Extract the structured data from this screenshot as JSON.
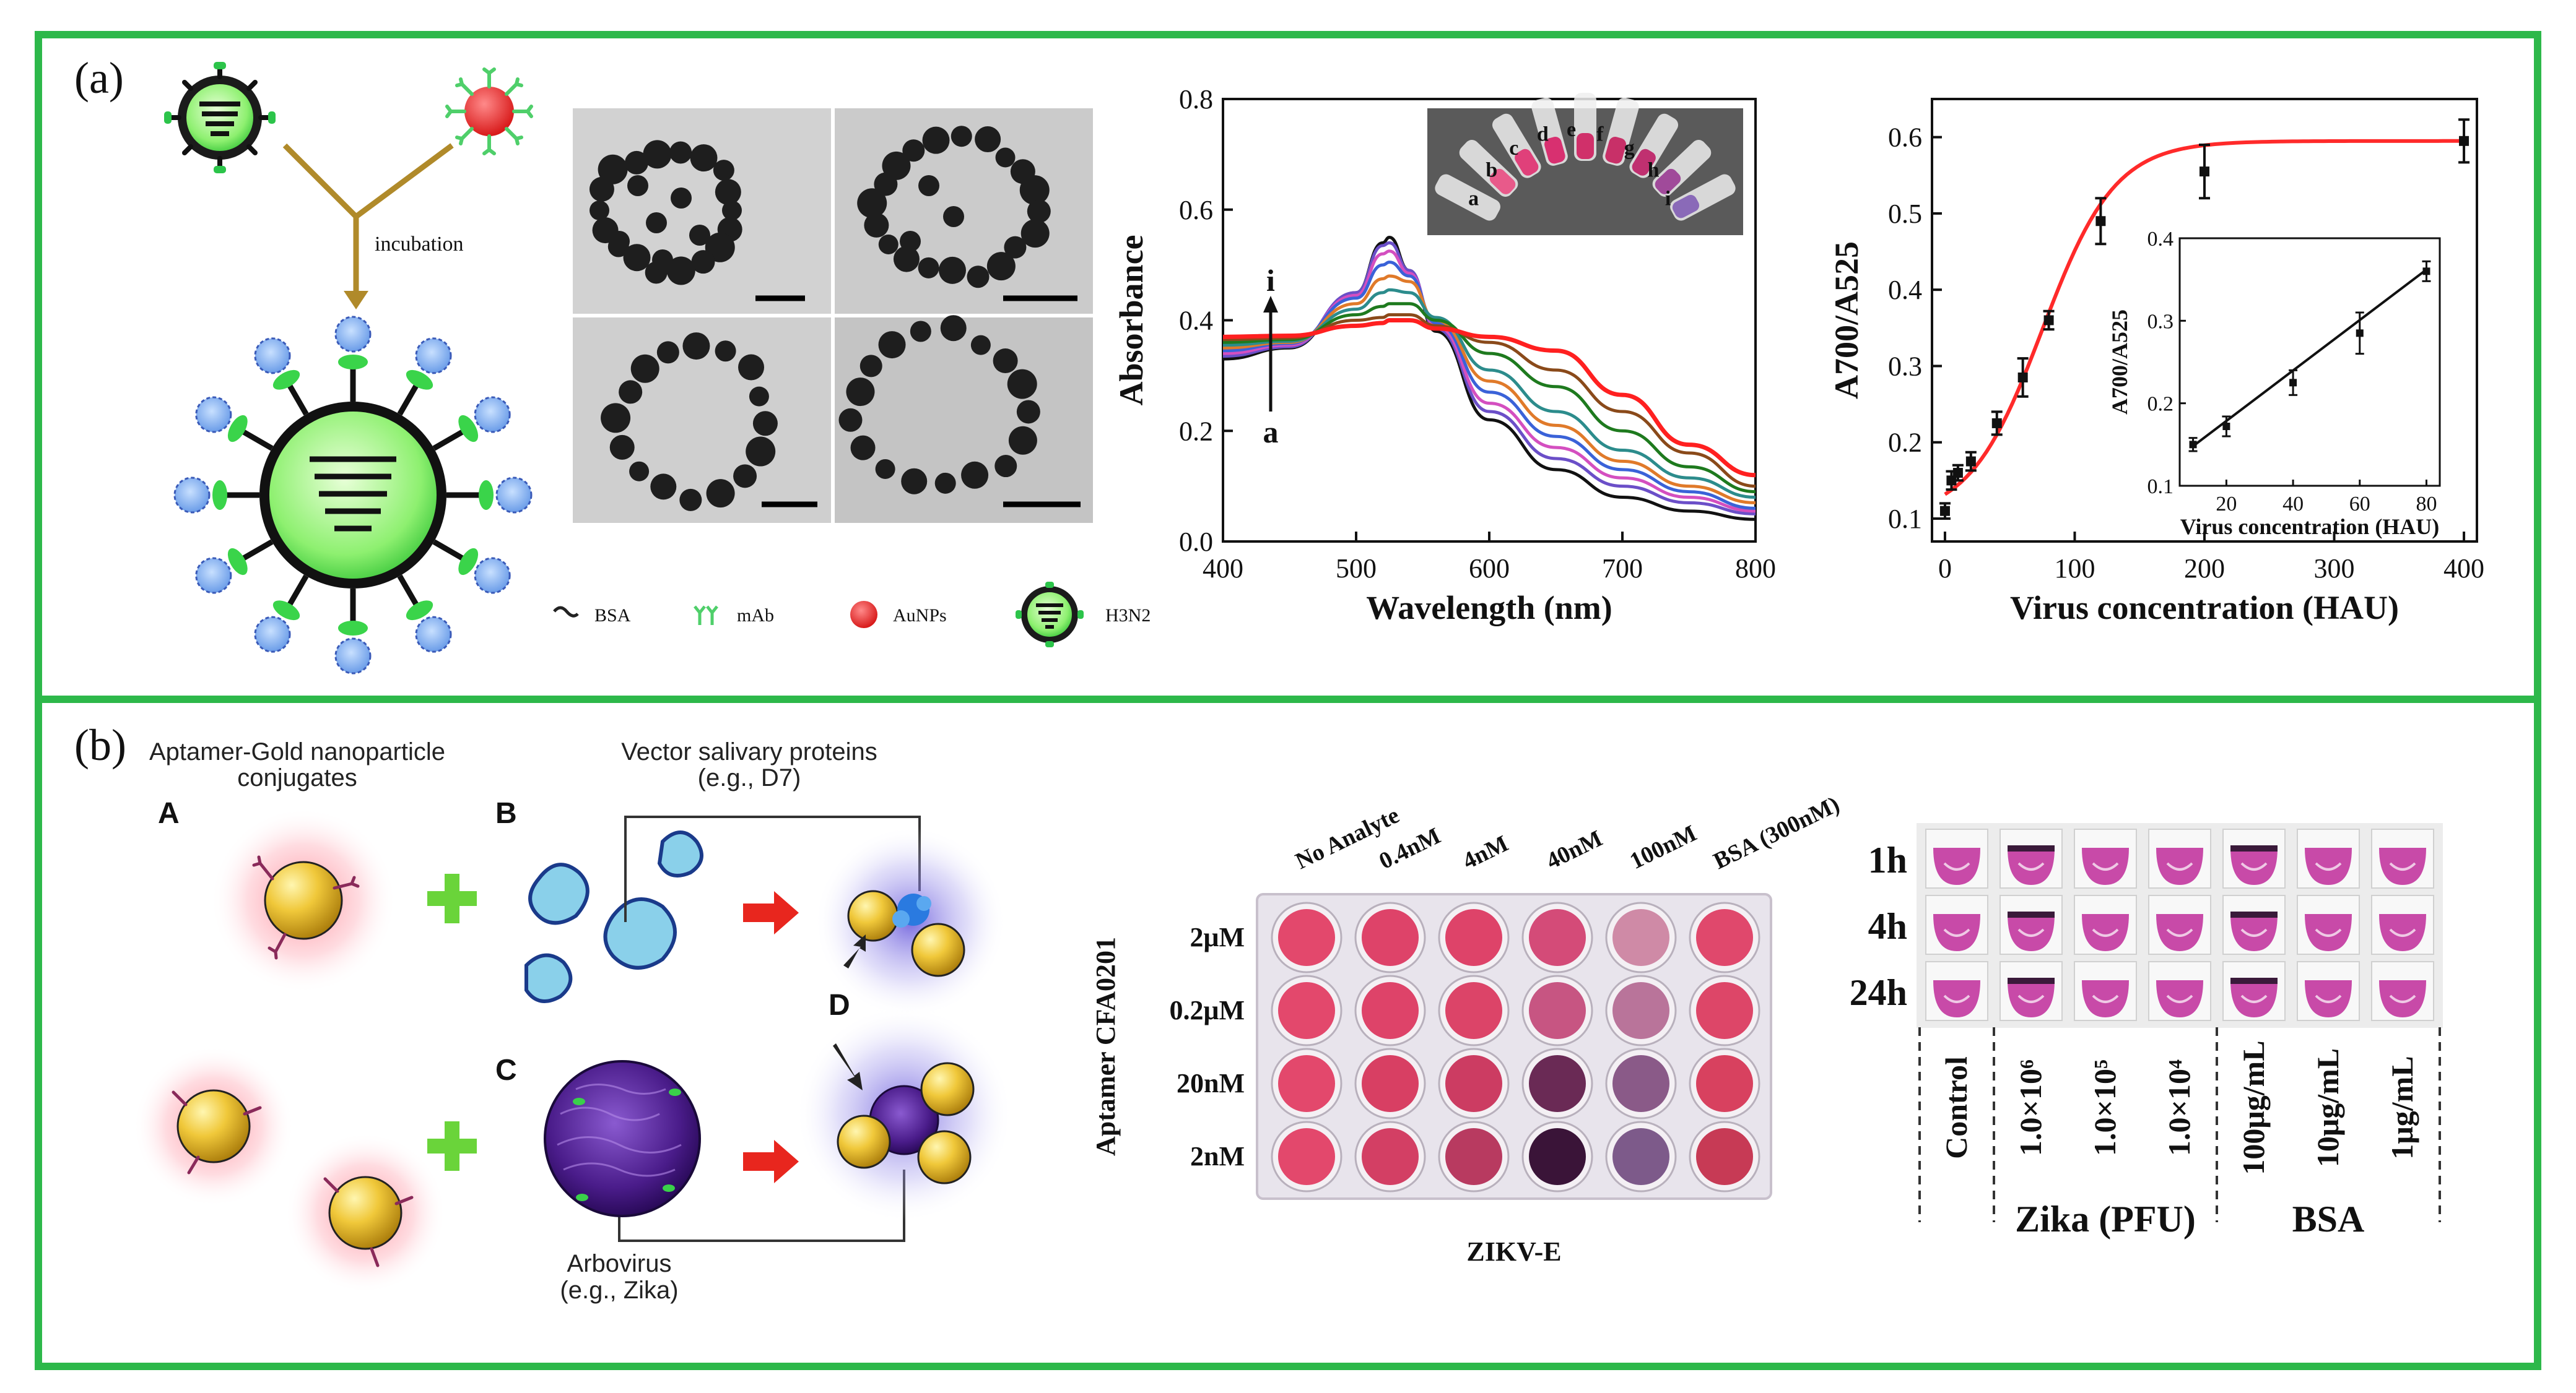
{
  "panel_a": {
    "label": "(a)",
    "scheme": {
      "step_label": "incubation",
      "legend": [
        {
          "icon": "bsa-icon",
          "label": "BSA"
        },
        {
          "icon": "mab-icon",
          "label": "mAb"
        },
        {
          "icon": "aunp-icon",
          "label": "AuNPs"
        },
        {
          "icon": "h3n2-icon",
          "label": "H3N2"
        }
      ]
    },
    "inset_tube_labels": [
      "a",
      "b",
      "c",
      "d",
      "e",
      "f",
      "g",
      "h",
      "i"
    ],
    "arrow_top_label": "i",
    "arrow_bottom_label": "a",
    "colors": {
      "frame": "#2db84a",
      "fit_curve": "#ff2a2a"
    }
  },
  "chart_data": [
    {
      "type": "line",
      "title": "",
      "xlabel": "Wavelength (nm)",
      "ylabel": "Absorbance",
      "xlim": [
        400,
        800
      ],
      "ylim": [
        0.0,
        0.8
      ],
      "xticks": [
        400,
        500,
        600,
        700,
        800
      ],
      "yticks": [
        0.0,
        0.2,
        0.4,
        0.6,
        0.8
      ],
      "x": [
        400,
        450,
        500,
        520,
        525,
        540,
        560,
        600,
        650,
        700,
        750,
        800
      ],
      "series": [
        {
          "name": "a",
          "color": "#111111",
          "values": [
            0.33,
            0.35,
            0.45,
            0.54,
            0.55,
            0.49,
            0.38,
            0.22,
            0.13,
            0.08,
            0.055,
            0.04
          ]
        },
        {
          "name": "b",
          "color": "#6b4fc8",
          "values": [
            0.335,
            0.352,
            0.45,
            0.535,
            0.54,
            0.49,
            0.385,
            0.235,
            0.15,
            0.1,
            0.07,
            0.05
          ]
        },
        {
          "name": "c",
          "color": "#d44fc0",
          "values": [
            0.34,
            0.355,
            0.445,
            0.52,
            0.525,
            0.485,
            0.39,
            0.25,
            0.17,
            0.115,
            0.08,
            0.055
          ]
        },
        {
          "name": "d",
          "color": "#3a62d8",
          "values": [
            0.345,
            0.358,
            0.44,
            0.5,
            0.505,
            0.48,
            0.395,
            0.27,
            0.19,
            0.13,
            0.09,
            0.06
          ]
        },
        {
          "name": "e",
          "color": "#e07a2a",
          "values": [
            0.35,
            0.36,
            0.43,
            0.475,
            0.48,
            0.47,
            0.4,
            0.29,
            0.21,
            0.145,
            0.1,
            0.07
          ]
        },
        {
          "name": "f",
          "color": "#2c8c8c",
          "values": [
            0.355,
            0.362,
            0.42,
            0.45,
            0.455,
            0.45,
            0.405,
            0.31,
            0.235,
            0.165,
            0.115,
            0.08
          ]
        },
        {
          "name": "g",
          "color": "#1e7a1e",
          "values": [
            0.36,
            0.365,
            0.41,
            0.425,
            0.43,
            0.43,
            0.4,
            0.34,
            0.28,
            0.2,
            0.135,
            0.09
          ]
        },
        {
          "name": "h",
          "color": "#8a4a1a",
          "values": [
            0.365,
            0.368,
            0.4,
            0.405,
            0.41,
            0.41,
            0.39,
            0.36,
            0.31,
            0.235,
            0.16,
            0.1
          ]
        },
        {
          "name": "i",
          "color": "#ff2020",
          "values": [
            0.37,
            0.372,
            0.39,
            0.395,
            0.4,
            0.4,
            0.385,
            0.37,
            0.345,
            0.265,
            0.175,
            0.12
          ]
        }
      ]
    },
    {
      "type": "scatter",
      "title": "",
      "xlabel": "Virus concentration (HAU)",
      "ylabel": "A700/A525",
      "xlim": [
        -10,
        410
      ],
      "ylim": [
        0.07,
        0.65
      ],
      "xticks": [
        0,
        100,
        200,
        300,
        400
      ],
      "yticks": [
        0.1,
        0.2,
        0.3,
        0.4,
        0.5,
        0.6
      ],
      "points": [
        {
          "x": 0,
          "y": 0.11,
          "err": 0.01
        },
        {
          "x": 5,
          "y": 0.15,
          "err": 0.012
        },
        {
          "x": 10,
          "y": 0.16,
          "err": 0.01
        },
        {
          "x": 20,
          "y": 0.175,
          "err": 0.012
        },
        {
          "x": 40,
          "y": 0.225,
          "err": 0.015
        },
        {
          "x": 60,
          "y": 0.285,
          "err": 0.025
        },
        {
          "x": 80,
          "y": 0.36,
          "err": 0.012
        },
        {
          "x": 120,
          "y": 0.49,
          "err": 0.03
        },
        {
          "x": 200,
          "y": 0.555,
          "err": 0.035
        },
        {
          "x": 400,
          "y": 0.595,
          "err": 0.028
        }
      ],
      "fit": {
        "type": "sigmoid",
        "color": "#ff2a2a",
        "bottom": 0.1,
        "top": 0.595,
        "x50": 75,
        "slope": 28
      },
      "inset": {
        "type": "line",
        "xlabel": "Virus concentration (HAU)",
        "ylabel": "A700/A525",
        "xlim": [
          6,
          84
        ],
        "ylim": [
          0.1,
          0.4
        ],
        "xticks": [
          20,
          40,
          60,
          80
        ],
        "yticks": [
          0.1,
          0.2,
          0.3,
          0.4
        ],
        "points": [
          {
            "x": 10,
            "y": 0.15,
            "err": 0.008
          },
          {
            "x": 20,
            "y": 0.172,
            "err": 0.012
          },
          {
            "x": 40,
            "y": 0.225,
            "err": 0.015
          },
          {
            "x": 60,
            "y": 0.285,
            "err": 0.025
          },
          {
            "x": 80,
            "y": 0.36,
            "err": 0.012
          }
        ],
        "fit_line": [
          {
            "x": 10,
            "y": 0.148
          },
          {
            "x": 80,
            "y": 0.362
          }
        ]
      }
    },
    {
      "type": "heatmap",
      "title": "",
      "xlabel": "ZIKV-E",
      "ylabel": "Aptamer CFA0201",
      "columns": [
        "No Analyte",
        "0.4nM",
        "4nM",
        "40nM",
        "100nM",
        "BSA (300nM)"
      ],
      "rows": [
        "2μM",
        "0.2μM",
        "20nM",
        "2nM"
      ],
      "cells": [
        [
          "#e3486c",
          "#de4369",
          "#de4369",
          "#d44b78",
          "#cf8aa6",
          "#e0486c"
        ],
        [
          "#e3486c",
          "#de4369",
          "#dc4468",
          "#c75582",
          "#b9749a",
          "#dd4668"
        ],
        [
          "#e3486c",
          "#d83f63",
          "#cc3c62",
          "#6a2a55",
          "#8a5a88",
          "#d8415f"
        ],
        [
          "#e3486c",
          "#d33f64",
          "#b83a60",
          "#3a1438",
          "#7d5a8a",
          "#c73a55"
        ]
      ]
    }
  ],
  "panel_b": {
    "label": "(b)",
    "schematic": {
      "title_a": "Aptamer-Gold nanoparticle conjugates",
      "title_a_line1": "Aptamer-Gold nanoparticle",
      "title_a_line2": "conjugates",
      "title_b_line1": "Vector salivary proteins",
      "title_b_line2": "(e.g., D7)",
      "bottom_line1": "Arbovirus",
      "bottom_line2": "(e.g., Zika)",
      "letters": [
        "A",
        "B",
        "C",
        "D"
      ]
    },
    "tubes": {
      "rows": [
        "1h",
        "4h",
        "24h"
      ],
      "columns": [
        "Control",
        "1.0×10⁶",
        "1.0×10⁵",
        "1.0×10⁴",
        "100μg/mL",
        "10μg/mL",
        "1μg/mL"
      ],
      "group_zika": "Zika (PFU)",
      "group_bsa": "BSA",
      "dark_rows_cols": {
        "1h": [
          1,
          4
        ],
        "4h": [
          1,
          4
        ],
        "24h": [
          1,
          4
        ]
      }
    }
  }
}
